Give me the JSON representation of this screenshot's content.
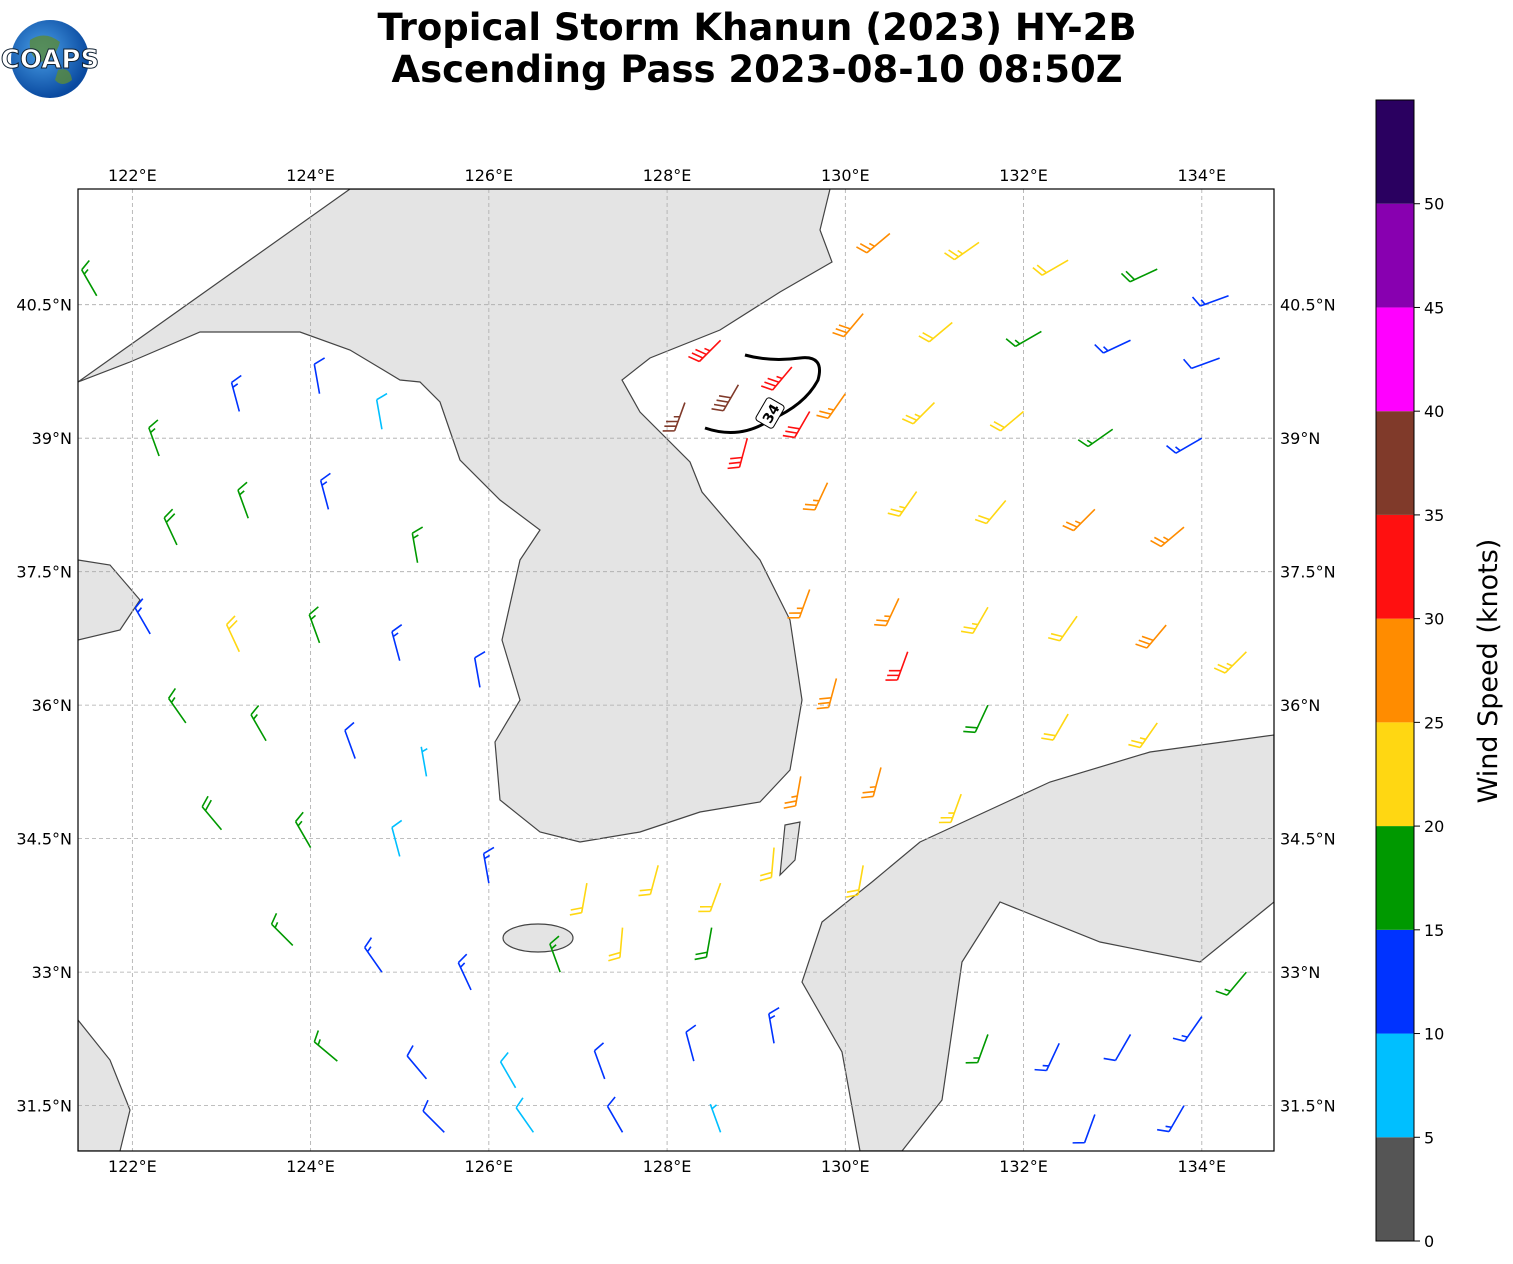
{
  "logo": {
    "text": "COAPS"
  },
  "title": [
    "Tropical Storm Khanun (2023) HY-2B",
    "Ascending Pass 2023-08-10 08:50Z"
  ],
  "map": {
    "type": "wind-barbs",
    "xlim": [
      121.39,
      134.81
    ],
    "ylim": [
      30.99,
      41.8
    ],
    "xticks": [
      {
        "value": 122,
        "label": "122°E"
      },
      {
        "value": 124,
        "label": "124°E"
      },
      {
        "value": 126,
        "label": "126°E"
      },
      {
        "value": 128,
        "label": "128°E"
      },
      {
        "value": 130,
        "label": "130°E"
      },
      {
        "value": 132,
        "label": "132°E"
      },
      {
        "value": 134,
        "label": "134°E"
      }
    ],
    "yticks": [
      {
        "value": 31.5,
        "label": "31.5°N"
      },
      {
        "value": 33,
        "label": "33°N"
      },
      {
        "value": 34.5,
        "label": "34.5°N"
      },
      {
        "value": 36,
        "label": "36°N"
      },
      {
        "value": 37.5,
        "label": "37.5°N"
      },
      {
        "value": 39,
        "label": "39°N"
      },
      {
        "value": 40.5,
        "label": "40.5°N"
      }
    ],
    "grid": true,
    "contour": {
      "level": 34
    },
    "barbs": {
      "lon": [
        130.5,
        131.5,
        132.5,
        133.5,
        134.3,
        130.2,
        131.2,
        132.2,
        133.2,
        134.2,
        130.0,
        131.0,
        132.0,
        133.0,
        134.0,
        129.8,
        130.8,
        131.8,
        132.8,
        133.8,
        129.6,
        130.6,
        131.6,
        132.6,
        133.6,
        134.5,
        129.9,
        130.7,
        131.6,
        132.5,
        133.5,
        129.5,
        130.4,
        131.3,
        129.2,
        130.2,
        128.2,
        128.8,
        129.4,
        128.9,
        129.6,
        128.6,
        121.6,
        122.3,
        123.2,
        124.1,
        124.8,
        122.5,
        123.3,
        124.2,
        125.2,
        122.2,
        123.2,
        124.1,
        125.0,
        125.9,
        122.6,
        123.5,
        124.5,
        125.3,
        123.0,
        124.0,
        125.0,
        126.0,
        123.8,
        124.8,
        125.8,
        126.8,
        124.3,
        125.3,
        126.3,
        127.3,
        128.3,
        129.2,
        125.5,
        126.5,
        127.5,
        128.6,
        127.1,
        127.9,
        128.6,
        127.5,
        128.5,
        131.6,
        132.4,
        133.2,
        134.0,
        134.5,
        132.8,
        133.8
      ],
      "lat": [
        41.3,
        41.2,
        41.0,
        40.9,
        40.6,
        40.4,
        40.3,
        40.2,
        40.1,
        39.9,
        39.5,
        39.4,
        39.3,
        39.1,
        39.0,
        38.5,
        38.4,
        38.3,
        38.2,
        38.0,
        37.3,
        37.2,
        37.1,
        37.0,
        36.9,
        36.6,
        36.3,
        36.6,
        36.0,
        35.9,
        35.8,
        35.2,
        35.3,
        35.0,
        34.4,
        34.2,
        39.4,
        39.6,
        39.8,
        39.0,
        39.3,
        40.1,
        40.6,
        38.8,
        39.3,
        39.5,
        39.1,
        37.8,
        38.1,
        38.2,
        37.6,
        36.8,
        36.6,
        36.7,
        36.5,
        36.2,
        35.8,
        35.6,
        35.4,
        35.2,
        34.6,
        34.4,
        34.3,
        34.0,
        33.3,
        33.0,
        32.8,
        33.0,
        32.0,
        31.8,
        31.7,
        31.8,
        32.0,
        32.2,
        31.2,
        31.2,
        31.2,
        31.2,
        34.0,
        34.2,
        34.0,
        33.5,
        33.5,
        32.3,
        32.2,
        32.3,
        32.5,
        33.0,
        31.4,
        31.5
      ],
      "speed": [
        26,
        24,
        22,
        18,
        13,
        29,
        21,
        17,
        14,
        11,
        27,
        23,
        21,
        17,
        13,
        26,
        24,
        22,
        27,
        26,
        27,
        26,
        23,
        22,
        28,
        24,
        28,
        31,
        19,
        22,
        23,
        26,
        27,
        24,
        22,
        21,
        37,
        38,
        34,
        31,
        32,
        33,
        16,
        17,
        14,
        12,
        9,
        18,
        16,
        13,
        16,
        13,
        22,
        16,
        14,
        11,
        16,
        17,
        11,
        7,
        18,
        15,
        9,
        13,
        17,
        14,
        13,
        17,
        16,
        11,
        8,
        12,
        11,
        13,
        12,
        9,
        11,
        7,
        21,
        22,
        20,
        22,
        19,
        17,
        13,
        12,
        14,
        17,
        11,
        13
      ],
      "direction": [
        230,
        235,
        240,
        245,
        250,
        220,
        230,
        240,
        245,
        250,
        215,
        225,
        230,
        235,
        240,
        205,
        215,
        220,
        225,
        230,
        200,
        205,
        210,
        215,
        220,
        225,
        195,
        200,
        205,
        210,
        215,
        190,
        195,
        200,
        185,
        190,
        200,
        210,
        220,
        195,
        210,
        225,
        330,
        340,
        345,
        350,
        350,
        335,
        340,
        345,
        350,
        330,
        335,
        340,
        345,
        350,
        325,
        330,
        340,
        350,
        320,
        330,
        345,
        350,
        315,
        325,
        335,
        340,
        310,
        320,
        330,
        340,
        345,
        350,
        315,
        325,
        330,
        340,
        190,
        195,
        200,
        185,
        190,
        200,
        205,
        210,
        215,
        220,
        200,
        210
      ]
    }
  },
  "colorbar": {
    "label": "Wind Speed (knots)",
    "clim": [
      0,
      55
    ],
    "bounds": [
      0,
      5,
      10,
      15,
      20,
      25,
      30,
      35,
      40,
      45,
      50,
      55
    ],
    "colors": [
      "#555555",
      "#00bfff",
      "#0033ff",
      "#009900",
      "#ffd712",
      "#ff8c00",
      "#ff1010",
      "#803a2a",
      "#ff00ff",
      "#8800b0",
      "#2a0060"
    ],
    "ticks": [
      0,
      5,
      10,
      15,
      20,
      25,
      30,
      35,
      40,
      45,
      50
    ]
  }
}
